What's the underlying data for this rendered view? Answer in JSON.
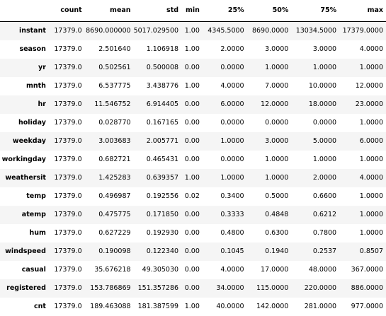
{
  "table": {
    "index_header": "",
    "columns": [
      "count",
      "mean",
      "std",
      "min",
      "25%",
      "50%",
      "75%",
      "max"
    ],
    "rows": [
      {
        "label": "instant",
        "values": [
          "17379.0",
          "8690.000000",
          "5017.029500",
          "1.00",
          "4345.5000",
          "8690.0000",
          "13034.5000",
          "17379.0000"
        ]
      },
      {
        "label": "season",
        "values": [
          "17379.0",
          "2.501640",
          "1.106918",
          "1.00",
          "2.0000",
          "3.0000",
          "3.0000",
          "4.0000"
        ]
      },
      {
        "label": "yr",
        "values": [
          "17379.0",
          "0.502561",
          "0.500008",
          "0.00",
          "0.0000",
          "1.0000",
          "1.0000",
          "1.0000"
        ]
      },
      {
        "label": "mnth",
        "values": [
          "17379.0",
          "6.537775",
          "3.438776",
          "1.00",
          "4.0000",
          "7.0000",
          "10.0000",
          "12.0000"
        ]
      },
      {
        "label": "hr",
        "values": [
          "17379.0",
          "11.546752",
          "6.914405",
          "0.00",
          "6.0000",
          "12.0000",
          "18.0000",
          "23.0000"
        ]
      },
      {
        "label": "holiday",
        "values": [
          "17379.0",
          "0.028770",
          "0.167165",
          "0.00",
          "0.0000",
          "0.0000",
          "0.0000",
          "1.0000"
        ]
      },
      {
        "label": "weekday",
        "values": [
          "17379.0",
          "3.003683",
          "2.005771",
          "0.00",
          "1.0000",
          "3.0000",
          "5.0000",
          "6.0000"
        ]
      },
      {
        "label": "workingday",
        "values": [
          "17379.0",
          "0.682721",
          "0.465431",
          "0.00",
          "0.0000",
          "1.0000",
          "1.0000",
          "1.0000"
        ]
      },
      {
        "label": "weathersit",
        "values": [
          "17379.0",
          "1.425283",
          "0.639357",
          "1.00",
          "1.0000",
          "1.0000",
          "2.0000",
          "4.0000"
        ]
      },
      {
        "label": "temp",
        "values": [
          "17379.0",
          "0.496987",
          "0.192556",
          "0.02",
          "0.3400",
          "0.5000",
          "0.6600",
          "1.0000"
        ]
      },
      {
        "label": "atemp",
        "values": [
          "17379.0",
          "0.475775",
          "0.171850",
          "0.00",
          "0.3333",
          "0.4848",
          "0.6212",
          "1.0000"
        ]
      },
      {
        "label": "hum",
        "values": [
          "17379.0",
          "0.627229",
          "0.192930",
          "0.00",
          "0.4800",
          "0.6300",
          "0.7800",
          "1.0000"
        ]
      },
      {
        "label": "windspeed",
        "values": [
          "17379.0",
          "0.190098",
          "0.122340",
          "0.00",
          "0.1045",
          "0.1940",
          "0.2537",
          "0.8507"
        ]
      },
      {
        "label": "casual",
        "values": [
          "17379.0",
          "35.676218",
          "49.305030",
          "0.00",
          "4.0000",
          "17.0000",
          "48.0000",
          "367.0000"
        ]
      },
      {
        "label": "registered",
        "values": [
          "17379.0",
          "153.786869",
          "151.357286",
          "0.00",
          "34.0000",
          "115.0000",
          "220.0000",
          "886.0000"
        ]
      },
      {
        "label": "cnt",
        "values": [
          "17379.0",
          "189.463088",
          "181.387599",
          "1.00",
          "40.0000",
          "142.0000",
          "281.0000",
          "977.0000"
        ]
      }
    ]
  }
}
